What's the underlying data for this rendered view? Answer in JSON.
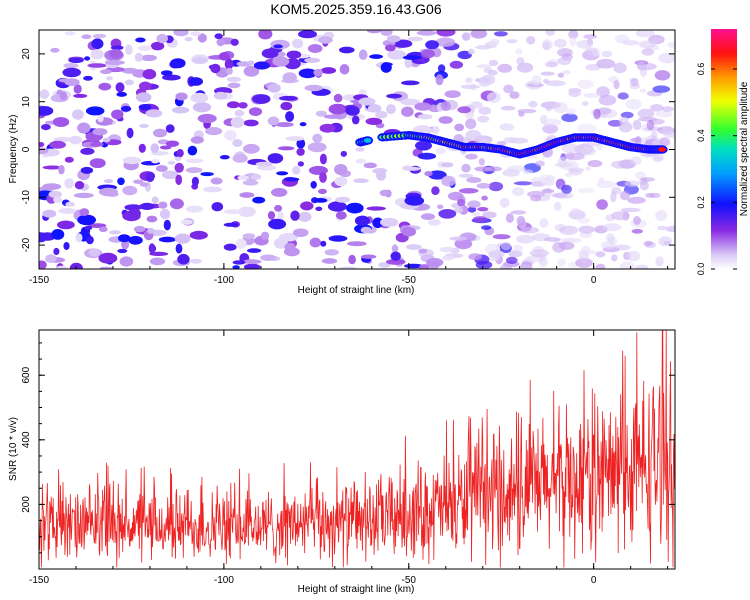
{
  "colors": {
    "snr_line": "#ee2222",
    "background": "#ffffff",
    "spectrogram_purple": "#8a2be2"
  },
  "chart_data": [
    {
      "type": "heatmap",
      "title": "KOM5.2025.359.16.43.G06",
      "xlabel": "Height of straight line (km)",
      "ylabel": "Frequency (Hz)",
      "xlim": [
        -150,
        22
      ],
      "ylim": [
        -25,
        25
      ],
      "xticks": [
        "-150",
        "-100",
        "-50",
        "0"
      ],
      "xtick_values": [
        -150,
        -100,
        -50,
        0
      ],
      "yticks": [
        "-20",
        "-10",
        "0",
        "10",
        "20"
      ],
      "ytick_values": [
        -20,
        -10,
        0,
        10,
        20
      ],
      "colorbar": {
        "label": "Normalized spectral amplitude",
        "range": [
          0.0,
          0.72
        ],
        "ticks": [
          "0.0",
          "0.2",
          "0.4",
          "0.6"
        ],
        "tick_values": [
          0.0,
          0.2,
          0.4,
          0.6
        ]
      },
      "signal_trace": {
        "x": [
          -63,
          -58,
          -50,
          -45,
          -40,
          -35,
          -30,
          -25,
          -20,
          -15,
          -10,
          -5,
          0,
          5,
          10,
          15,
          19
        ],
        "y": [
          1.5,
          2.5,
          3.0,
          2.5,
          1.5,
          0.5,
          0.5,
          0.0,
          -1.0,
          0.0,
          1.5,
          2.5,
          2.5,
          1.5,
          0.5,
          0.0,
          0.0
        ],
        "amplitude": [
          0.35,
          0.4,
          0.45,
          0.5,
          0.55,
          0.58,
          0.6,
          0.62,
          0.65,
          0.68,
          0.7,
          0.66,
          0.68,
          0.65,
          0.66,
          0.7,
          0.6
        ]
      }
    },
    {
      "type": "line",
      "title": "",
      "xlabel": "Height of straight line (km)",
      "ylabel": "SNR (10 * v/v)",
      "xlim": [
        -150,
        22
      ],
      "ylim": [
        0,
        740
      ],
      "xticks": [
        "-150",
        "-100",
        "-50",
        "0"
      ],
      "xtick_values": [
        -150,
        -100,
        -50,
        0
      ],
      "yticks": [
        "200",
        "400",
        "600"
      ],
      "ytick_values": [
        200,
        400,
        600
      ],
      "series": [
        {
          "name": "SNR",
          "x": [
            -150,
            -140,
            -130,
            -120,
            -110,
            -100,
            -90,
            -80,
            -70,
            -60,
            -50,
            -40,
            -30,
            -20,
            -10,
            0,
            10,
            15,
            22
          ],
          "values": [
            135,
            130,
            140,
            130,
            135,
            128,
            130,
            140,
            145,
            150,
            175,
            190,
            220,
            240,
            260,
            285,
            300,
            330,
            340
          ]
        }
      ]
    }
  ]
}
